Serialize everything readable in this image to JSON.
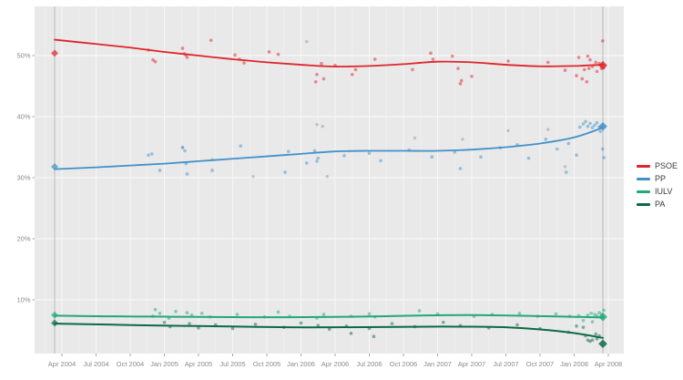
{
  "chart_data": {
    "type": "scatter",
    "description": "Opinion poll scatter with smoothed trend lines per party, Apr 2004 - Apr 2008; diamonds mark start/end election results",
    "title": "",
    "xlabel": "",
    "ylabel": "",
    "x_tick_labels": [
      "Apr 2004",
      "Jul 2004",
      "Oct 2004",
      "Jan 2005",
      "Apr 2005",
      "Jul 2005",
      "Oct 2005",
      "Jan 2006",
      "Apr 2006",
      "Jul 2006",
      "Oct 2006",
      "Jan 2007",
      "Apr 2007",
      "Jul 2007",
      "Oct 2007",
      "Jan 2008",
      "Apr 2008"
    ],
    "x_tick_months": [
      0,
      3,
      6,
      9,
      12,
      15,
      18,
      21,
      24,
      27,
      30,
      33,
      36,
      39,
      42,
      45,
      48
    ],
    "y_tick_labels": [
      "10%",
      "20%",
      "30%",
      "40%",
      "50%"
    ],
    "y_tick_values": [
      10,
      20,
      30,
      40,
      50
    ],
    "ylim": [
      1,
      58
    ],
    "xlim_months": [
      -2.4,
      49.4
    ],
    "grid": true,
    "legend_position": "right",
    "event_lines_months": [
      -0.64,
      47.52
    ],
    "colors": {
      "panel_bg": "#e9e9e9",
      "grid_major": "#f7f7f7",
      "grid_minor": "#f0f0f0",
      "event_line": "#b8babc",
      "axis_text": "#8a8a8a",
      "tick_mark": "#9a9a9a",
      "legend_text": "#3a3a3a",
      "gray_points": "#9aa0a5"
    },
    "series": [
      {
        "id": "psoe",
        "name": "PSOE",
        "color": "#e02429",
        "endpoints": {
          "start": [
            -0.64,
            50.4
          ],
          "end": [
            47.52,
            48.4
          ]
        },
        "trend": [
          [
            -0.64,
            52.6
          ],
          [
            3,
            51.9
          ],
          [
            6,
            51.3
          ],
          [
            9,
            50.6
          ],
          [
            12,
            50.0
          ],
          [
            15,
            49.4
          ],
          [
            18,
            48.9
          ],
          [
            21,
            48.5
          ],
          [
            24,
            48.2
          ],
          [
            27,
            48.3
          ],
          [
            30,
            48.6
          ],
          [
            33,
            49.0
          ],
          [
            36,
            48.9
          ],
          [
            39,
            48.5
          ],
          [
            42,
            48.25
          ],
          [
            45,
            48.3
          ],
          [
            47.52,
            48.5
          ]
        ],
        "polls": [
          [
            7.6,
            50.9
          ],
          [
            8.0,
            49.3
          ],
          [
            8.2,
            49.0
          ],
          [
            10.6,
            51.2
          ],
          [
            10.75,
            50.3
          ],
          [
            10.9,
            50.1
          ],
          [
            11.0,
            49.7
          ],
          [
            13.1,
            52.5
          ],
          [
            15.2,
            50.1
          ],
          [
            15.6,
            49.4
          ],
          [
            16.0,
            48.8
          ],
          [
            18.2,
            50.6
          ],
          [
            19.0,
            50.2
          ],
          [
            22.3,
            45.7
          ],
          [
            22.4,
            46.9
          ],
          [
            22.8,
            48.7
          ],
          [
            23.0,
            46.2
          ],
          [
            24.0,
            48.4
          ],
          [
            25.5,
            46.9
          ],
          [
            25.8,
            47.7
          ],
          [
            27.5,
            49.4
          ],
          [
            30.8,
            47.7
          ],
          [
            32.4,
            50.4
          ],
          [
            32.6,
            49.4
          ],
          [
            34.3,
            49.9
          ],
          [
            34.8,
            47.9
          ],
          [
            35.0,
            45.4
          ],
          [
            35.1,
            45.9
          ],
          [
            36.0,
            46.6
          ],
          [
            39.2,
            49.1
          ],
          [
            42.7,
            48.9
          ],
          [
            44.2,
            47.6
          ],
          [
            45.2,
            46.7
          ],
          [
            45.4,
            49.7
          ],
          [
            45.7,
            46.2
          ],
          [
            45.9,
            47.7
          ],
          [
            46.1,
            45.7
          ],
          [
            46.2,
            49.9
          ],
          [
            46.3,
            47.9
          ],
          [
            46.4,
            49.3
          ],
          [
            46.6,
            48.2
          ],
          [
            46.9,
            48.9
          ],
          [
            47.0,
            47.4
          ],
          [
            47.2,
            48.7
          ],
          [
            47.4,
            47.9
          ],
          [
            47.5,
            52.4
          ],
          [
            47.6,
            48.0
          ]
        ]
      },
      {
        "id": "pp",
        "name": "PP",
        "color": "#4191c9",
        "endpoints": {
          "start": [
            -0.64,
            31.8
          ],
          "end": [
            47.52,
            38.4
          ]
        },
        "trend": [
          [
            -0.64,
            31.4
          ],
          [
            3,
            31.7
          ],
          [
            6,
            32.0
          ],
          [
            9,
            32.3
          ],
          [
            12,
            32.7
          ],
          [
            15,
            33.1
          ],
          [
            18,
            33.5
          ],
          [
            21,
            33.9
          ],
          [
            24,
            34.3
          ],
          [
            27,
            34.4
          ],
          [
            30,
            34.4
          ],
          [
            33,
            34.4
          ],
          [
            36,
            34.6
          ],
          [
            39,
            35.0
          ],
          [
            42,
            35.6
          ],
          [
            45,
            36.6
          ],
          [
            47.52,
            38.2
          ]
        ],
        "polls": [
          [
            7.6,
            33.7
          ],
          [
            7.9,
            33.9
          ],
          [
            8.6,
            31.2
          ],
          [
            10.6,
            34.9
          ],
          [
            10.8,
            34.4
          ],
          [
            10.9,
            32.3
          ],
          [
            11.0,
            30.6
          ],
          [
            13.2,
            31.2
          ],
          [
            15.7,
            35.2
          ],
          [
            19.6,
            30.9
          ],
          [
            19.9,
            34.3
          ],
          [
            21.5,
            32.4
          ],
          [
            22.2,
            34.4
          ],
          [
            22.4,
            32.7
          ],
          [
            22.5,
            33.2
          ],
          [
            24.8,
            33.6
          ],
          [
            27.0,
            34.0
          ],
          [
            28.0,
            32.8
          ],
          [
            30.5,
            34.5
          ],
          [
            32.5,
            33.4
          ],
          [
            34.5,
            34.2
          ],
          [
            35.0,
            31.5
          ],
          [
            36.8,
            33.4
          ],
          [
            38.5,
            34.9
          ],
          [
            40.0,
            35.4
          ],
          [
            41.0,
            33.2
          ],
          [
            42.5,
            36.3
          ],
          [
            43.5,
            34.7
          ],
          [
            44.3,
            30.9
          ],
          [
            44.5,
            35.6
          ],
          [
            45.2,
            33.7
          ],
          [
            45.5,
            38.3
          ],
          [
            45.8,
            38.8
          ],
          [
            46.0,
            39.2
          ],
          [
            46.2,
            38.4
          ],
          [
            46.4,
            38.9
          ],
          [
            46.6,
            38.2
          ],
          [
            46.8,
            38.6
          ],
          [
            47.0,
            39.0
          ],
          [
            47.2,
            38.3
          ],
          [
            47.3,
            37.6
          ],
          [
            47.5,
            34.7
          ],
          [
            47.6,
            33.3
          ]
        ]
      },
      {
        "id": "iulv",
        "name": "IULV",
        "color": "#22a87a",
        "endpoints": {
          "start": [
            -0.64,
            7.5
          ],
          "end": [
            47.52,
            7.2
          ]
        },
        "trend": [
          [
            -0.64,
            7.4
          ],
          [
            4,
            7.3
          ],
          [
            8,
            7.25
          ],
          [
            12,
            7.2
          ],
          [
            16,
            7.15
          ],
          [
            20,
            7.15
          ],
          [
            24,
            7.2
          ],
          [
            28,
            7.3
          ],
          [
            32,
            7.45
          ],
          [
            36,
            7.5
          ],
          [
            40,
            7.4
          ],
          [
            44,
            7.25
          ],
          [
            47.52,
            7.1
          ]
        ],
        "polls": [
          [
            8.0,
            7.3
          ],
          [
            8.2,
            8.4
          ],
          [
            8.6,
            7.8
          ],
          [
            9.4,
            7.0
          ],
          [
            10.0,
            8.1
          ],
          [
            11.0,
            7.9
          ],
          [
            11.4,
            7.5
          ],
          [
            12.3,
            7.8
          ],
          [
            13.0,
            7.2
          ],
          [
            15.4,
            7.6
          ],
          [
            17.8,
            7.2
          ],
          [
            19.0,
            8.0
          ],
          [
            20.0,
            7.3
          ],
          [
            22.4,
            7.0
          ],
          [
            23.0,
            7.6
          ],
          [
            25.4,
            7.3
          ],
          [
            27.0,
            7.7
          ],
          [
            27.5,
            7.2
          ],
          [
            31.4,
            8.2
          ],
          [
            33.0,
            7.7
          ],
          [
            36.2,
            7.3
          ],
          [
            37.8,
            7.6
          ],
          [
            40.2,
            7.8
          ],
          [
            41.8,
            7.3
          ],
          [
            43.4,
            7.7
          ],
          [
            44.6,
            7.3
          ],
          [
            45.4,
            7.4
          ],
          [
            45.8,
            6.6
          ],
          [
            46.2,
            7.5
          ],
          [
            46.5,
            7.8
          ],
          [
            46.6,
            6.4
          ],
          [
            46.8,
            7.6
          ],
          [
            47.0,
            7.4
          ],
          [
            47.2,
            7.9
          ],
          [
            47.4,
            7.6
          ],
          [
            47.6,
            8.3
          ]
        ]
      },
      {
        "id": "pa",
        "name": "PA",
        "color": "#0d6a45",
        "endpoints": {
          "start": [
            -0.64,
            6.2
          ],
          "end": [
            47.52,
            2.8
          ]
        },
        "trend": [
          [
            -0.64,
            6.1
          ],
          [
            4,
            5.95
          ],
          [
            8,
            5.8
          ],
          [
            12,
            5.7
          ],
          [
            16,
            5.6
          ],
          [
            20,
            5.5
          ],
          [
            24,
            5.5
          ],
          [
            28,
            5.55
          ],
          [
            32,
            5.6
          ],
          [
            36,
            5.6
          ],
          [
            39,
            5.5
          ],
          [
            42,
            5.15
          ],
          [
            45,
            4.55
          ],
          [
            47.52,
            3.75
          ]
        ],
        "polls": [
          [
            9.0,
            6.3
          ],
          [
            9.5,
            5.6
          ],
          [
            11.2,
            6.1
          ],
          [
            12.0,
            5.4
          ],
          [
            13.5,
            5.9
          ],
          [
            15.0,
            5.3
          ],
          [
            17.0,
            6.0
          ],
          [
            19.5,
            5.5
          ],
          [
            21.0,
            6.2
          ],
          [
            22.5,
            5.8
          ],
          [
            23.5,
            5.2
          ],
          [
            25.0,
            5.7
          ],
          [
            25.4,
            4.5
          ],
          [
            27.0,
            5.3
          ],
          [
            27.4,
            4.0
          ],
          [
            29.0,
            6.1
          ],
          [
            31.0,
            5.6
          ],
          [
            33.5,
            6.3
          ],
          [
            35.0,
            5.8
          ],
          [
            37.5,
            5.4
          ],
          [
            40.0,
            5.9
          ],
          [
            42.0,
            5.3
          ],
          [
            44.5,
            4.7
          ],
          [
            45.2,
            5.7
          ],
          [
            45.8,
            5.5
          ],
          [
            46.0,
            4.1
          ],
          [
            46.2,
            3.4
          ],
          [
            46.4,
            3.2
          ],
          [
            46.6,
            3.4
          ],
          [
            46.9,
            4.4
          ],
          [
            47.0,
            3.6
          ],
          [
            47.2,
            4.1
          ]
        ]
      }
    ],
    "gray_points": [
      [
        10.6,
        35.0
      ],
      [
        13.2,
        33.0
      ],
      [
        16.8,
        30.2
      ],
      [
        21.5,
        52.3
      ],
      [
        22.4,
        38.7
      ],
      [
        22.9,
        38.4
      ],
      [
        23.3,
        30.2
      ],
      [
        31.0,
        36.5
      ],
      [
        35.2,
        36.3
      ],
      [
        39.2,
        37.7
      ],
      [
        42.7,
        37.9
      ],
      [
        44.2,
        31.8
      ]
    ]
  },
  "legend": {
    "items": [
      "PSOE",
      "PP",
      "IULV",
      "PA"
    ]
  }
}
